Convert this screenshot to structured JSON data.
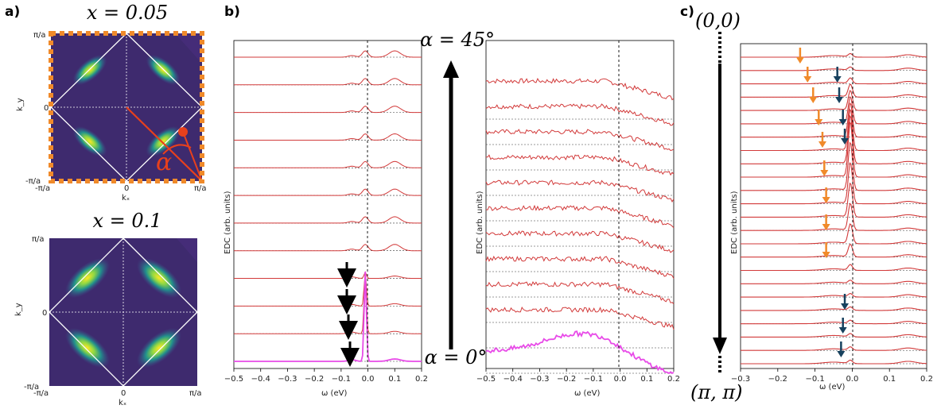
{
  "panel_labels": {
    "a": "a)",
    "b": "b)",
    "c": "c)"
  },
  "chart_data": [
    {
      "type": "heatmap",
      "title": "x = 0.05",
      "xlabel": "kₓ",
      "ylabel": "k_y",
      "x_ticks": [
        "-π/a",
        "0",
        "π/a"
      ],
      "y_ticks": [
        "-π/a",
        "0",
        "π/a"
      ],
      "annotation": "α",
      "border": "dashed orange"
    },
    {
      "type": "heatmap",
      "title": "x = 0.1",
      "xlabel": "kₓ",
      "ylabel": "k_y",
      "x_ticks": [
        "-π/a",
        "0",
        "π/a"
      ],
      "y_ticks": [
        "-π/a",
        "0",
        "π/a"
      ]
    },
    {
      "type": "line",
      "title": "",
      "xlabel": "ω (eV)",
      "ylabel": "EDC (arb. units)",
      "xlim": [
        -0.5,
        0.2
      ],
      "x_ticks": [
        "−0.5",
        "−0.4",
        "−0.3",
        "−0.2",
        "−0.1",
        "0.0",
        "0.1",
        "0.2"
      ],
      "n_curves": 12,
      "arrow_annotation_top": "α = 45°",
      "arrow_annotation_bottom": "α = 0°"
    },
    {
      "type": "line",
      "title": "",
      "xlabel": "ω (eV)",
      "ylabel": "EDC (arb. units)",
      "xlim": [
        -0.5,
        0.2
      ],
      "x_ticks": [
        "−0.5",
        "−0.4",
        "−0.3",
        "−0.2",
        "−0.1",
        "0.0",
        "0.1",
        "0.2"
      ],
      "n_curves": 11
    },
    {
      "type": "line",
      "title": "",
      "xlabel": "ω (eV)",
      "ylabel": "EDC (arb. units)",
      "xlim": [
        -0.3,
        0.2
      ],
      "x_ticks": [
        "−0.3",
        "−0.2",
        "−0.1",
        "0.0",
        "0.1",
        "0.2"
      ],
      "n_curves": 24,
      "path_start": "(0,0)",
      "path_end": "(π, π)"
    }
  ]
}
